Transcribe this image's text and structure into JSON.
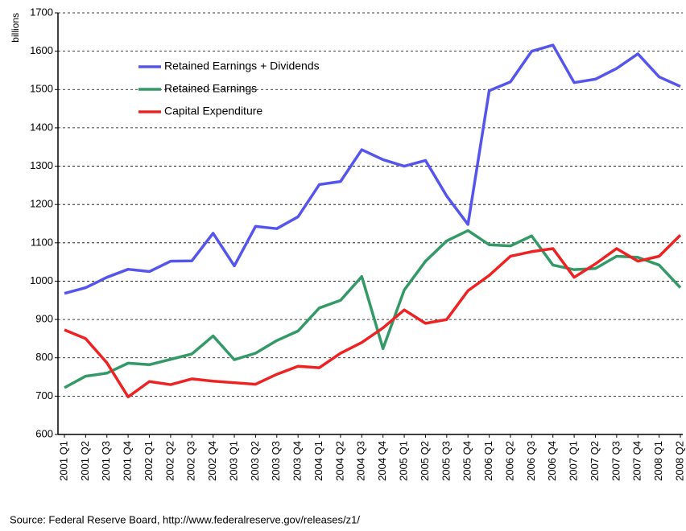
{
  "chart_data": {
    "type": "line",
    "y_label": "billions",
    "source": "Source: Federal Reserve Board, http://www.federalreserve.gov/releases/z1/",
    "categories": [
      "2001 Q1",
      "2001 Q2",
      "2001 Q3",
      "2001 Q4",
      "2002 Q1",
      "2002 Q2",
      "2002 Q3",
      "2002 Q4",
      "2003 Q1",
      "2003 Q2",
      "2003 Q3",
      "2003 Q4",
      "2004 Q1",
      "2004 Q2",
      "2004 Q3",
      "2004 Q4",
      "2005 Q1",
      "2005 Q2",
      "2005 Q3",
      "2005 Q4",
      "2006 Q1",
      "2006 Q2",
      "2006 Q3",
      "2006 Q4",
      "2007 Q1",
      "2007 Q2",
      "2007 Q3",
      "2007 Q4",
      "2008 Q1",
      "2008 Q2"
    ],
    "series": [
      {
        "name": "Retained Earnings + Dividends",
        "color": "#5555ee",
        "values": [
          968,
          983,
          1010,
          1031,
          1025,
          1052,
          1053,
          1125,
          1040,
          1143,
          1137,
          1168,
          1252,
          1260,
          1343,
          1317,
          1300,
          1315,
          1222,
          1148,
          1497,
          1520,
          1600,
          1616,
          1518,
          1527,
          1555,
          1593,
          1533,
          1508
        ]
      },
      {
        "name": "Retained Earnings",
        "color": "#339966",
        "values": [
          722,
          752,
          760,
          786,
          782,
          796,
          810,
          857,
          795,
          812,
          845,
          870,
          930,
          950,
          1012,
          824,
          977,
          1052,
          1105,
          1132,
          1095,
          1092,
          1118,
          1042,
          1030,
          1033,
          1065,
          1062,
          1042,
          983
        ]
      },
      {
        "name": "Capital Expenditure",
        "color": "#ee2222",
        "values": [
          873,
          850,
          787,
          698,
          738,
          730,
          745,
          739,
          735,
          731,
          757,
          778,
          774,
          812,
          840,
          878,
          925,
          890,
          900,
          975,
          1015,
          1065,
          1077,
          1085,
          1010,
          1045,
          1085,
          1052,
          1065,
          1120
        ]
      }
    ],
    "ylim": [
      600,
      1700
    ],
    "yticks": [
      600,
      700,
      800,
      900,
      1000,
      1100,
      1200,
      1300,
      1400,
      1500,
      1600,
      1700
    ],
    "grid": true
  }
}
